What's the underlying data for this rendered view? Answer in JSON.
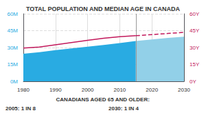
{
  "chart_data": {
    "type": "area",
    "title": "TOTAL POPULATION AND MEDIAN AGE IN CANADA",
    "subtitle": "CANADIANS AGED 65 AND OLDER:",
    "annotations": [
      "2005: 1 IN 8",
      "2030: 1 IN 4"
    ],
    "series": [
      {
        "type": "area",
        "color": "#29ABE2",
        "x": [
          1980,
          1985,
          1990,
          1995,
          2000,
          2005,
          2010,
          2015
        ],
        "values": [
          24.5,
          25.8,
          27.7,
          29.3,
          30.8,
          32.3,
          34.0,
          35.8
        ]
      },
      {
        "type": "area",
        "color": "#92D0E8",
        "x": [
          2015,
          2020,
          2025,
          2030
        ],
        "values": [
          35.8,
          37.2,
          38.5,
          39.7
        ]
      },
      {
        "type": "line",
        "axis": "y2",
        "color": "#C2185B",
        "line_style": "solid",
        "x": [
          1980,
          1985,
          1990,
          1995,
          2000,
          2005,
          2010,
          2015
        ],
        "values": [
          29.5,
          30.5,
          32.5,
          34.5,
          36.5,
          38.2,
          39.7,
          40.5
        ]
      },
      {
        "type": "line",
        "axis": "y2",
        "color": "#C2185B",
        "line_style": "dashed",
        "x": [
          2015,
          2020,
          2025,
          2030
        ],
        "values": [
          40.5,
          41.5,
          42.5,
          43.5
        ]
      }
    ],
    "xlim": [
      1980,
      2030
    ],
    "xticks": [
      1980,
      1990,
      2000,
      2010,
      2020,
      2030
    ],
    "ylim": [
      0,
      60
    ],
    "yticks": [
      {
        "value": 0,
        "label": "0M"
      },
      {
        "value": 15,
        "label": "15M"
      },
      {
        "value": 30,
        "label": "30M"
      },
      {
        "value": 45,
        "label": "45M"
      },
      {
        "value": 60,
        "label": "60M"
      }
    ],
    "y2lim": [
      0,
      60
    ],
    "y2ticks": [
      {
        "value": 0,
        "label": "0Y"
      },
      {
        "value": 15,
        "label": "15Y"
      },
      {
        "value": 30,
        "label": "30Y"
      },
      {
        "value": 45,
        "label": "45Y"
      },
      {
        "value": 60,
        "label": "60Y"
      }
    ],
    "grid": true,
    "forecast_start": 2015
  }
}
